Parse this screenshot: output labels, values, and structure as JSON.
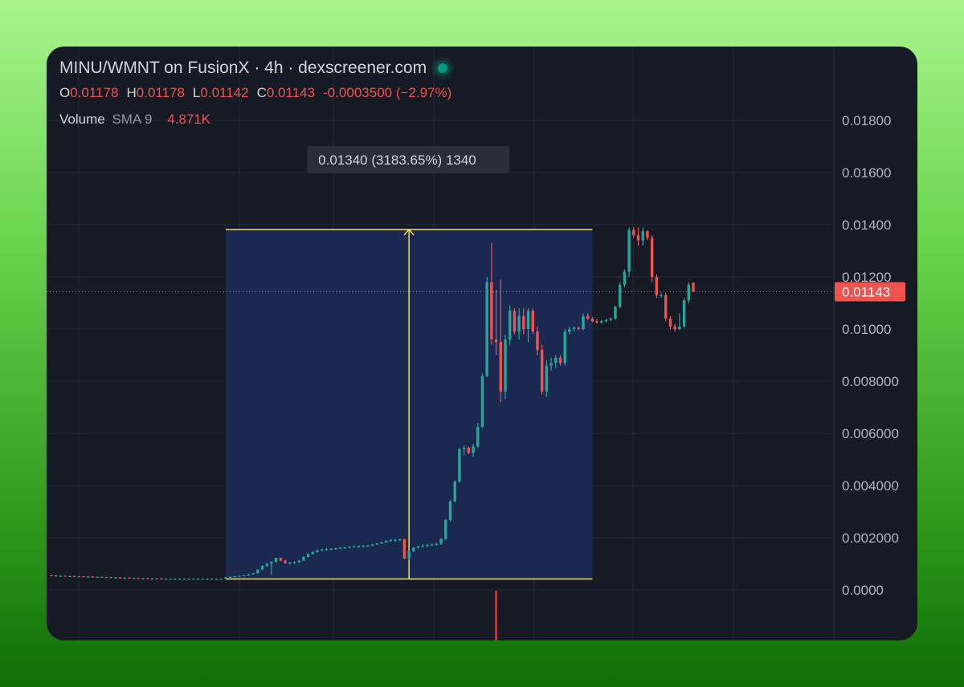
{
  "header": {
    "title": "MINU/WMNT on FusionX · 4h · dexscreener.com",
    "ohlc": {
      "o_label": "O",
      "o_value": "0.01178",
      "h_label": "H",
      "h_value": "0.01178",
      "l_label": "L",
      "l_value": "0.01142",
      "c_label": "C",
      "c_value": "0.01143",
      "change": "-0.0003500 (−2.97%)"
    },
    "volume": {
      "label": "Volume",
      "indicator": "SMA 9",
      "value": "4.871K"
    }
  },
  "colors": {
    "up": "#26a69a",
    "down": "#ef5350",
    "measure": "#f5e642",
    "measure_fill": "#1c2a55",
    "grid": "#262a36",
    "price_line": "#ef5350"
  },
  "chart_data": {
    "type": "candlestick",
    "y_axis": {
      "ylim": [
        -0.001,
        0.0185
      ],
      "ticks": [
        0.0,
        0.002,
        0.004,
        0.006,
        0.008,
        0.01,
        0.012,
        0.014,
        0.016,
        0.018
      ],
      "tick_labels": [
        "0.0000",
        "0.002000",
        "0.004000",
        "0.006000",
        "0.008000",
        "0.01000",
        "0.01200",
        "0.01400",
        "0.01600",
        "0.01800"
      ]
    },
    "last_price": {
      "value": 0.01143,
      "label": "0.01143"
    },
    "measurement": {
      "label": "0.01340 (3183.65%) 1340",
      "start_index": 38,
      "end_index": 118,
      "low": 0.00042,
      "high": 0.01382
    },
    "candles": [
      [
        0.00056,
        0.00057,
        0.00054,
        0.00055
      ],
      [
        0.00055,
        0.00056,
        0.00053,
        0.00054
      ],
      [
        0.00054,
        0.00055,
        0.00053,
        0.00054
      ],
      [
        0.00054,
        0.00055,
        0.00052,
        0.00053
      ],
      [
        0.00053,
        0.00054,
        0.00052,
        0.00053
      ],
      [
        0.00053,
        0.00054,
        0.00051,
        0.00052
      ],
      [
        0.00052,
        0.00053,
        0.00051,
        0.00052
      ],
      [
        0.00052,
        0.00053,
        0.0005,
        0.00051
      ],
      [
        0.00051,
        0.00052,
        0.0005,
        0.00051
      ],
      [
        0.00051,
        0.00052,
        0.00049,
        0.0005
      ],
      [
        0.0005,
        0.00051,
        0.00049,
        0.0005
      ],
      [
        0.0005,
        0.00051,
        0.00048,
        0.00049
      ],
      [
        0.00049,
        0.0005,
        0.00048,
        0.00049
      ],
      [
        0.00049,
        0.0005,
        0.00047,
        0.00048
      ],
      [
        0.00048,
        0.00049,
        0.00047,
        0.00048
      ],
      [
        0.00048,
        0.00049,
        0.00046,
        0.00047
      ],
      [
        0.00047,
        0.00048,
        0.00046,
        0.00047
      ],
      [
        0.00047,
        0.00048,
        0.00045,
        0.00046
      ],
      [
        0.00046,
        0.00047,
        0.00045,
        0.00046
      ],
      [
        0.00046,
        0.00047,
        0.00044,
        0.00045
      ],
      [
        0.00045,
        0.00046,
        0.00044,
        0.00045
      ],
      [
        0.00045,
        0.00046,
        0.00043,
        0.00044
      ],
      [
        0.00044,
        0.00045,
        0.00043,
        0.00044
      ],
      [
        0.00044,
        0.00045,
        0.00043,
        0.00044
      ],
      [
        0.00044,
        0.00045,
        0.00042,
        0.00043
      ],
      [
        0.00043,
        0.00044,
        0.00042,
        0.00043
      ],
      [
        0.00043,
        0.00044,
        0.00042,
        0.00043
      ],
      [
        0.00043,
        0.00044,
        0.00042,
        0.00043
      ],
      [
        0.00043,
        0.00044,
        0.00042,
        0.00043
      ],
      [
        0.00043,
        0.00044,
        0.00042,
        0.00043
      ],
      [
        0.00043,
        0.00044,
        0.00042,
        0.00043
      ],
      [
        0.00043,
        0.00044,
        0.00042,
        0.00043
      ],
      [
        0.00043,
        0.00044,
        0.00042,
        0.00043
      ],
      [
        0.00043,
        0.00044,
        0.00042,
        0.00043
      ],
      [
        0.00043,
        0.00044,
        0.00042,
        0.00043
      ],
      [
        0.00043,
        0.00044,
        0.00042,
        0.00043
      ],
      [
        0.00043,
        0.00044,
        0.00042,
        0.00043
      ],
      [
        0.00043,
        0.00044,
        0.00042,
        0.00043
      ],
      [
        0.00043,
        0.0005,
        0.00042,
        0.00048
      ],
      [
        0.00048,
        0.00052,
        0.00046,
        0.0005
      ],
      [
        0.0005,
        0.00053,
        0.00048,
        0.00052
      ],
      [
        0.00052,
        0.00055,
        0.0005,
        0.00054
      ],
      [
        0.00054,
        0.00058,
        0.00052,
        0.00056
      ],
      [
        0.00056,
        0.00062,
        0.00054,
        0.0006
      ],
      [
        0.0006,
        0.00066,
        0.00058,
        0.00064
      ],
      [
        0.00064,
        0.0008,
        0.00062,
        0.00078
      ],
      [
        0.00078,
        0.00095,
        0.00076,
        0.00092
      ],
      [
        0.00092,
        0.00104,
        0.00088,
        0.001
      ],
      [
        0.001,
        0.0011,
        0.00058,
        0.00108
      ],
      [
        0.00108,
        0.00124,
        0.00104,
        0.00122
      ],
      [
        0.00122,
        0.00124,
        0.0011,
        0.00112
      ],
      [
        0.00112,
        0.00116,
        0.001,
        0.00102
      ],
      [
        0.00102,
        0.00108,
        0.00098,
        0.00104
      ],
      [
        0.00104,
        0.0011,
        0.001,
        0.00106
      ],
      [
        0.00106,
        0.00114,
        0.00104,
        0.00112
      ],
      [
        0.00112,
        0.00128,
        0.0011,
        0.00126
      ],
      [
        0.00126,
        0.0014,
        0.00124,
        0.00138
      ],
      [
        0.00138,
        0.00148,
        0.00136,
        0.00145
      ],
      [
        0.00145,
        0.00154,
        0.00142,
        0.00152
      ],
      [
        0.00152,
        0.00158,
        0.00148,
        0.00155
      ],
      [
        0.00155,
        0.0016,
        0.0015,
        0.00157
      ],
      [
        0.00157,
        0.0016,
        0.00152,
        0.00158
      ],
      [
        0.00158,
        0.00162,
        0.00154,
        0.0016
      ],
      [
        0.0016,
        0.00164,
        0.00156,
        0.00162
      ],
      [
        0.00162,
        0.00166,
        0.00158,
        0.00163
      ],
      [
        0.00163,
        0.00168,
        0.0016,
        0.00165
      ],
      [
        0.00165,
        0.0017,
        0.00162,
        0.00167
      ],
      [
        0.00167,
        0.0017,
        0.00162,
        0.00168
      ],
      [
        0.00168,
        0.00172,
        0.00164,
        0.00169
      ],
      [
        0.00169,
        0.00172,
        0.00164,
        0.0017
      ],
      [
        0.0017,
        0.00176,
        0.00168,
        0.00174
      ],
      [
        0.00174,
        0.0018,
        0.00172,
        0.00178
      ],
      [
        0.00178,
        0.00184,
        0.00176,
        0.00182
      ],
      [
        0.00182,
        0.0019,
        0.0018,
        0.00188
      ],
      [
        0.00188,
        0.00194,
        0.00184,
        0.00192
      ],
      [
        0.00192,
        0.00196,
        0.00186,
        0.00192
      ],
      [
        0.00192,
        0.00196,
        0.00186,
        0.00194
      ],
      [
        0.00194,
        0.00196,
        0.00118,
        0.0012
      ],
      [
        0.0012,
        0.0015,
        0.00115,
        0.00148
      ],
      [
        0.00148,
        0.00164,
        0.00144,
        0.00162
      ],
      [
        0.00162,
        0.0017,
        0.00158,
        0.00168
      ],
      [
        0.00168,
        0.00174,
        0.00162,
        0.0017
      ],
      [
        0.0017,
        0.00176,
        0.00164,
        0.00172
      ],
      [
        0.00172,
        0.00178,
        0.00168,
        0.00174
      ],
      [
        0.00174,
        0.0018,
        0.0017,
        0.00176
      ],
      [
        0.00176,
        0.002,
        0.00172,
        0.00195
      ],
      [
        0.00195,
        0.00272,
        0.0019,
        0.00268
      ],
      [
        0.00268,
        0.00345,
        0.00262,
        0.0034
      ],
      [
        0.0034,
        0.0042,
        0.00335,
        0.00415
      ],
      [
        0.00415,
        0.00545,
        0.0041,
        0.0054
      ],
      [
        0.0054,
        0.00555,
        0.00515,
        0.00545
      ],
      [
        0.00545,
        0.0055,
        0.0052,
        0.00525
      ],
      [
        0.00525,
        0.0056,
        0.0051,
        0.0055
      ],
      [
        0.0055,
        0.0064,
        0.00545,
        0.00625
      ],
      [
        0.00625,
        0.0083,
        0.0062,
        0.0082
      ],
      [
        0.0082,
        0.012,
        0.00815,
        0.0118
      ],
      [
        0.0118,
        0.0133,
        0.0094,
        0.0096
      ],
      [
        0.0096,
        0.0115,
        0.009,
        0.0095
      ],
      [
        0.0095,
        0.0119,
        0.0072,
        0.0076
      ],
      [
        0.0076,
        0.0098,
        0.0073,
        0.0096
      ],
      [
        0.0096,
        0.0109,
        0.0094,
        0.0107
      ],
      [
        0.0107,
        0.0108,
        0.0098,
        0.0099
      ],
      [
        0.0099,
        0.0108,
        0.0096,
        0.0105
      ],
      [
        0.0105,
        0.0108,
        0.0098,
        0.01
      ],
      [
        0.01,
        0.0108,
        0.0095,
        0.0107
      ],
      [
        0.0107,
        0.0108,
        0.0098,
        0.0099
      ],
      [
        0.0099,
        0.0101,
        0.009,
        0.0092
      ],
      [
        0.0092,
        0.0094,
        0.0075,
        0.0076
      ],
      [
        0.0076,
        0.0088,
        0.0074,
        0.0086
      ],
      [
        0.0086,
        0.0089,
        0.0084,
        0.0087
      ],
      [
        0.0087,
        0.009,
        0.0085,
        0.0089
      ],
      [
        0.0089,
        0.009,
        0.0086,
        0.0087
      ],
      [
        0.0087,
        0.01,
        0.0086,
        0.0099
      ],
      [
        0.0099,
        0.0101,
        0.0098,
        0.01
      ],
      [
        0.01,
        0.0101,
        0.0099,
        0.01005
      ],
      [
        0.01005,
        0.0101,
        0.00995,
        0.01
      ],
      [
        0.01,
        0.0106,
        0.00995,
        0.0105
      ],
      [
        0.0105,
        0.0106,
        0.01035,
        0.0104
      ],
      [
        0.0104,
        0.01045,
        0.01025,
        0.0103
      ],
      [
        0.0103,
        0.0104,
        0.0102,
        0.01025
      ],
      [
        0.01025,
        0.01035,
        0.0102,
        0.0103
      ],
      [
        0.0103,
        0.0104,
        0.01025,
        0.01035
      ],
      [
        0.01035,
        0.01045,
        0.0103,
        0.0104
      ],
      [
        0.0104,
        0.0109,
        0.01035,
        0.01085
      ],
      [
        0.01085,
        0.0118,
        0.0108,
        0.0117
      ],
      [
        0.0117,
        0.0123,
        0.0116,
        0.0122
      ],
      [
        0.0122,
        0.0139,
        0.012,
        0.0138
      ],
      [
        0.0138,
        0.0139,
        0.0135,
        0.0136
      ],
      [
        0.0136,
        0.0139,
        0.0132,
        0.0134
      ],
      [
        0.0134,
        0.0139,
        0.0132,
        0.01375
      ],
      [
        0.01375,
        0.0138,
        0.0134,
        0.0135
      ],
      [
        0.0135,
        0.0136,
        0.0118,
        0.012
      ],
      [
        0.012,
        0.0121,
        0.0112,
        0.0113
      ],
      [
        0.0113,
        0.0114,
        0.0112,
        0.0113
      ],
      [
        0.0113,
        0.0114,
        0.0103,
        0.0104
      ],
      [
        0.0104,
        0.0105,
        0.01,
        0.0101
      ],
      [
        0.0101,
        0.0102,
        0.0099,
        0.01
      ],
      [
        0.01,
        0.0106,
        0.00995,
        0.0101
      ],
      [
        0.0101,
        0.0112,
        0.01005,
        0.0111
      ],
      [
        0.0111,
        0.0118,
        0.011,
        0.0117
      ],
      [
        0.01178,
        0.01178,
        0.01142,
        0.01143
      ]
    ]
  }
}
